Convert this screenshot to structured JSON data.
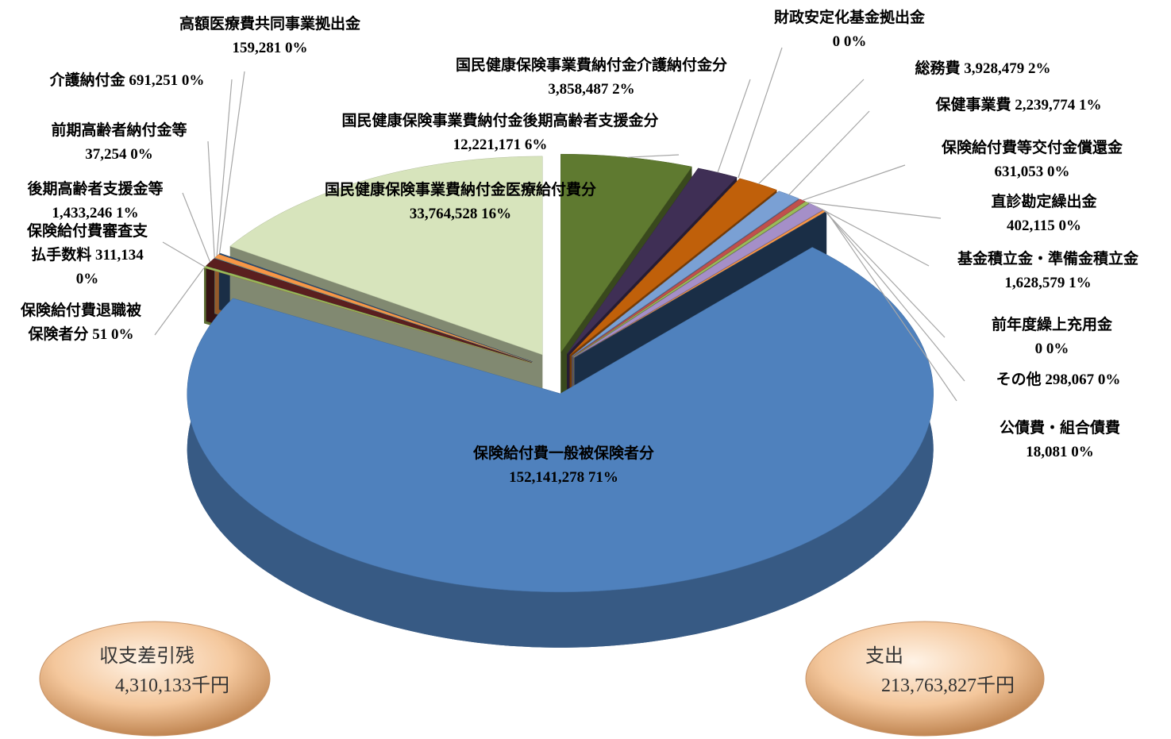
{
  "chart_data": {
    "type": "pie",
    "categories": [
      "国民健康保険事業費納付金後期高齢者支援金分",
      "国民健康保険事業費納付金介護納付金分",
      "財政安定化基金拠出金",
      "総務費",
      "保健事業費",
      "保険給付費等交付金償還金",
      "直診勘定繰出金",
      "基金積立金・準備金積立金",
      "前年度繰上充用金",
      "その他",
      "公債費・組合債費",
      "保険給付費一般被保険者分",
      "保険給付費退職被保険者分",
      "保険給付費審査支払手数料",
      "後期高齢者支援金等",
      "前期高齢者納付金等",
      "介護納付金",
      "高額医療費共同事業拠出金",
      "国民健康保険事業費納付金医療給付費分"
    ],
    "values": [
      12221171,
      3858487,
      0,
      3928479,
      2239774,
      631053,
      402115,
      1628579,
      0,
      298067,
      18081,
      152141278,
      51,
      311134,
      1433246,
      37254,
      691251,
      159281,
      33764528
    ],
    "value_labels": [
      "12,221,171",
      "3,858,487",
      "0",
      "3,928,479",
      "2,239,774",
      "631,053",
      "402,115",
      "1,628,579",
      "0",
      "298,067",
      "18,081",
      "152,141,278",
      "51",
      "311,134",
      "1,433,246",
      "37,254",
      "691,251",
      "159,281",
      "33,764,528"
    ],
    "percent_labels": [
      "6%",
      "2%",
      "0%",
      "2%",
      "1%",
      "0%",
      "0%",
      "1%",
      "0%",
      "0%",
      "0%",
      "71%",
      "0%",
      "0%",
      "1%",
      "0%",
      "0%",
      "0%",
      "16%"
    ],
    "colors": [
      "#5f7a30",
      "#3f2f55",
      "#1f4e5a",
      "#c0600a",
      "#7aa0d4",
      "#c0504d",
      "#9bbb59",
      "#a58fc8",
      "#4bacc6",
      "#f79646",
      "#2c4d75",
      "#4f81bd",
      "#c0504d",
      "#9bbb59",
      "#5a1f1f",
      "#4bacc6",
      "#f79646",
      "#2c4d75",
      "#d7e4bc"
    ],
    "summary": [
      {
        "label": "収支差引残",
        "value": "4,310,133千円"
      },
      {
        "label": "支出",
        "value": "213,763,827千円"
      }
    ]
  }
}
